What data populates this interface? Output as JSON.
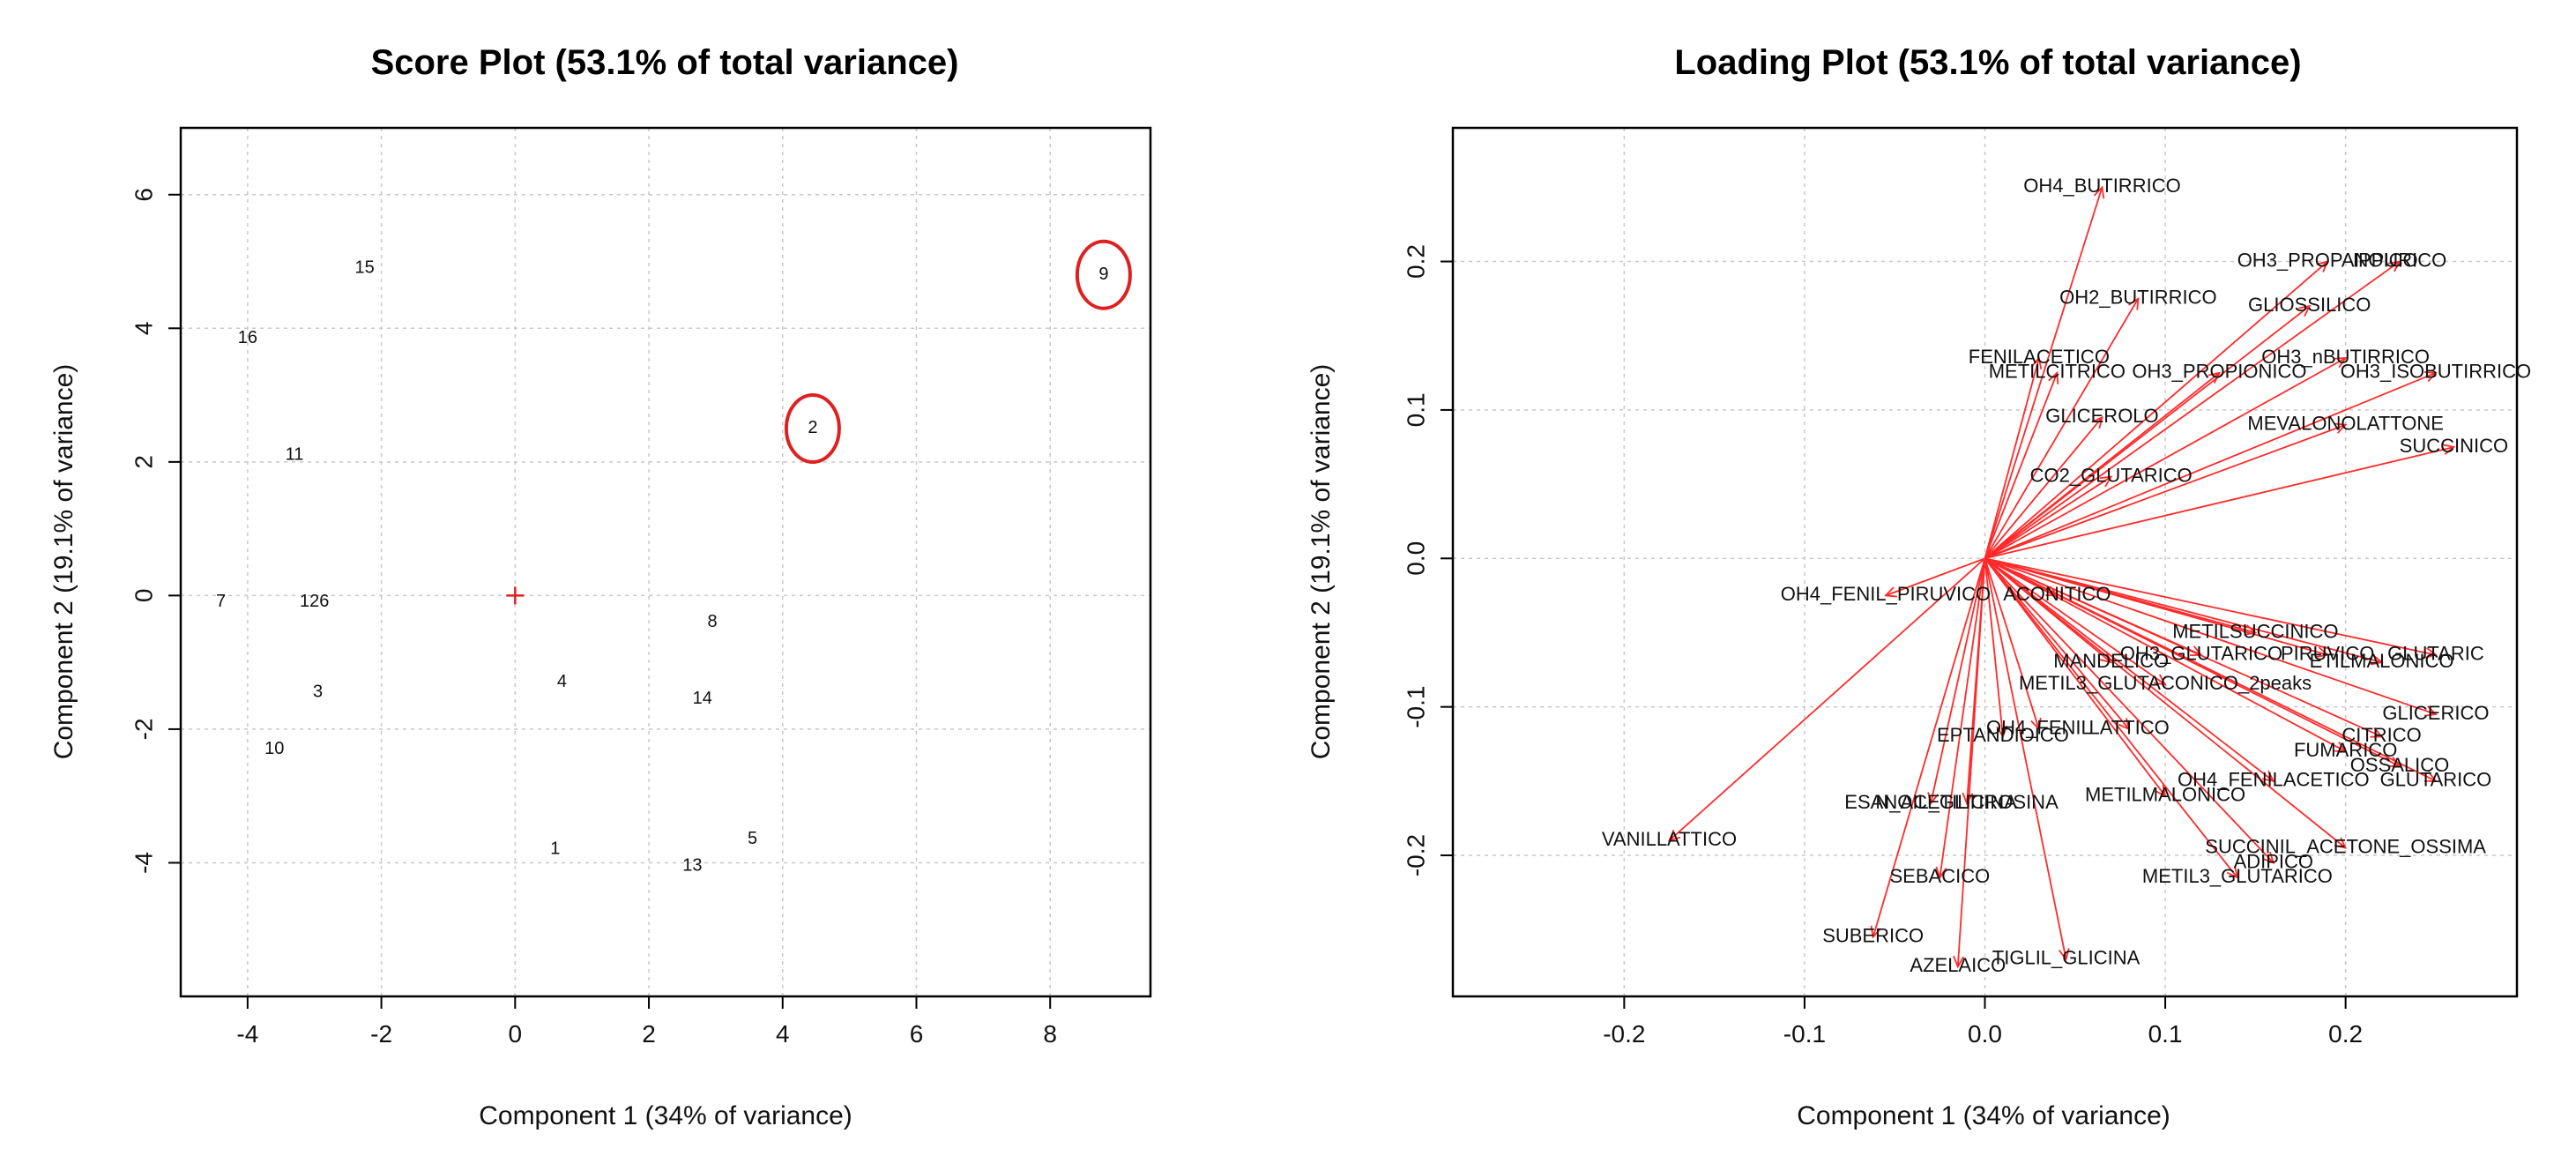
{
  "chart_data": [
    {
      "type": "scatter",
      "title": "Score Plot (53.1% of total variance)",
      "xlabel": "Component 1 (34% of variance)",
      "ylabel": "Component 2 (19.1% of variance)",
      "xlim": [
        -5,
        9.5
      ],
      "ylim": [
        -6,
        7
      ],
      "xticks": [
        -4,
        -2,
        0,
        2,
        4,
        6,
        8
      ],
      "yticks": [
        -4,
        -2,
        0,
        2,
        4,
        6
      ],
      "grid": true,
      "origin_marker": "+",
      "points": [
        {
          "label": "15",
          "x": -2.25,
          "y": 4.9
        },
        {
          "label": "16",
          "x": -4.0,
          "y": 3.85
        },
        {
          "label": "11",
          "x": -3.3,
          "y": 2.1
        },
        {
          "label": "7",
          "x": -4.4,
          "y": -0.1
        },
        {
          "label": "126",
          "x": -3.0,
          "y": -0.1
        },
        {
          "label": "3",
          "x": -2.95,
          "y": -1.45
        },
        {
          "label": "10",
          "x": -3.6,
          "y": -2.3
        },
        {
          "label": "4",
          "x": 0.7,
          "y": -1.3
        },
        {
          "label": "8",
          "x": 2.95,
          "y": -0.4
        },
        {
          "label": "14",
          "x": 2.8,
          "y": -1.55
        },
        {
          "label": "1",
          "x": 0.6,
          "y": -3.8
        },
        {
          "label": "13",
          "x": 2.65,
          "y": -4.05
        },
        {
          "label": "5",
          "x": 3.55,
          "y": -3.65
        },
        {
          "label": "2",
          "x": 4.45,
          "y": 2.5,
          "highlighted": true
        },
        {
          "label": "9",
          "x": 8.8,
          "y": 4.8,
          "highlighted": true
        }
      ],
      "colors": {
        "highlight": "#e02020",
        "origin": "#e02020",
        "text": "#111111"
      }
    },
    {
      "type": "scatter",
      "title": "Loading Plot (53.1% of total variance)",
      "xlabel": "Component 1 (34% of variance)",
      "ylabel": "Component 2 (19.1% of variance)",
      "xlim": [
        -0.295,
        0.295
      ],
      "ylim": [
        -0.295,
        0.29
      ],
      "xticks": [
        -0.2,
        -0.1,
        0.0,
        0.1,
        0.2
      ],
      "yticks": [
        -0.2,
        -0.1,
        0.0,
        0.1,
        0.2
      ],
      "grid": true,
      "arrows_from_origin": true,
      "variables": [
        {
          "label": "OH4_BUTIRRICO",
          "x": 0.065,
          "y": 0.25
        },
        {
          "label": "OH3_PROPANOICO",
          "x": 0.19,
          "y": 0.2
        },
        {
          "label": "IPPURICO",
          "x": 0.23,
          "y": 0.2
        },
        {
          "label": "OH2_BUTIRRICO",
          "x": 0.085,
          "y": 0.175
        },
        {
          "label": "GLIOSSILICO",
          "x": 0.18,
          "y": 0.17
        },
        {
          "label": "OH3_nBUTIRRICO",
          "x": 0.2,
          "y": 0.135
        },
        {
          "label": "FENILACETICO",
          "x": 0.03,
          "y": 0.135
        },
        {
          "label": "METILCITRICO",
          "x": 0.04,
          "y": 0.125
        },
        {
          "label": "OH3_PROPIONICO",
          "x": 0.13,
          "y": 0.125
        },
        {
          "label": "OH3_ISOBUTIRRICO",
          "x": 0.25,
          "y": 0.125
        },
        {
          "label": "GLICEROLO",
          "x": 0.065,
          "y": 0.095
        },
        {
          "label": "MEVALONOLATTONE",
          "x": 0.2,
          "y": 0.09
        },
        {
          "label": "SUCCINICO",
          "x": 0.26,
          "y": 0.075
        },
        {
          "label": "SUBERICO",
          "x": -0.062,
          "y": -0.255
        },
        {
          "label": "CO2_GLUTARICO",
          "x": 0.07,
          "y": 0.055
        },
        {
          "label": "OH4_FENIL_PIRUVICO",
          "x": -0.055,
          "y": -0.025
        },
        {
          "label": "ACONITICO",
          "x": 0.04,
          "y": -0.025
        },
        {
          "label": "METILSUCCINICO",
          "x": 0.15,
          "y": -0.05
        },
        {
          "label": "OH3_GLUTARICO",
          "x": 0.12,
          "y": -0.065
        },
        {
          "label": "MANDELICO",
          "x": 0.07,
          "y": -0.07
        },
        {
          "label": "PIRUVICO",
          "x": 0.19,
          "y": -0.065
        },
        {
          "label": "ETILMALONICO",
          "x": 0.22,
          "y": -0.07
        },
        {
          "label": "GLUTARIC",
          "x": 0.25,
          "y": -0.065
        },
        {
          "label": "METIL3_GLUTACONICO_2peaks",
          "x": 0.1,
          "y": -0.085
        },
        {
          "label": "GLICERICO",
          "x": 0.25,
          "y": -0.105
        },
        {
          "label": "LATTICO",
          "x": 0.08,
          "y": -0.115
        },
        {
          "label": "OH4_FENIL",
          "x": 0.03,
          "y": -0.115
        },
        {
          "label": "CITRICO",
          "x": 0.22,
          "y": -0.12
        },
        {
          "label": "FUMARICO",
          "x": 0.2,
          "y": -0.13
        },
        {
          "label": "EPTANDIOICO",
          "x": 0.01,
          "y": -0.12
        },
        {
          "label": "OH4_FENILACETICO",
          "x": 0.16,
          "y": -0.15
        },
        {
          "label": "OSSALICO",
          "x": 0.23,
          "y": -0.14
        },
        {
          "label": "GLUTARICO",
          "x": 0.25,
          "y": -0.15
        },
        {
          "label": "N_ACETILTIROSINA",
          "x": -0.01,
          "y": -0.165
        },
        {
          "label": "METILMALONICO",
          "x": 0.1,
          "y": -0.16
        },
        {
          "label": "ESANOIL_GLICINA",
          "x": -0.03,
          "y": -0.165
        },
        {
          "label": "VANILLATTICO",
          "x": -0.175,
          "y": -0.19
        },
        {
          "label": "SUCCINIL_ACETONE_OSSIMA",
          "x": 0.2,
          "y": -0.195
        },
        {
          "label": "METIL3_GLUTARICO",
          "x": 0.14,
          "y": -0.215
        },
        {
          "label": "ADIPICO",
          "x": 0.16,
          "y": -0.205
        },
        {
          "label": "SEBACICO",
          "x": -0.025,
          "y": -0.215
        },
        {
          "label": "AZELAICO",
          "x": -0.015,
          "y": -0.275
        },
        {
          "label": "TIGLIL_GLICINA",
          "x": 0.045,
          "y": -0.27
        }
      ],
      "colors": {
        "arrow": "#ff2a2a",
        "text": "#111111"
      }
    }
  ]
}
